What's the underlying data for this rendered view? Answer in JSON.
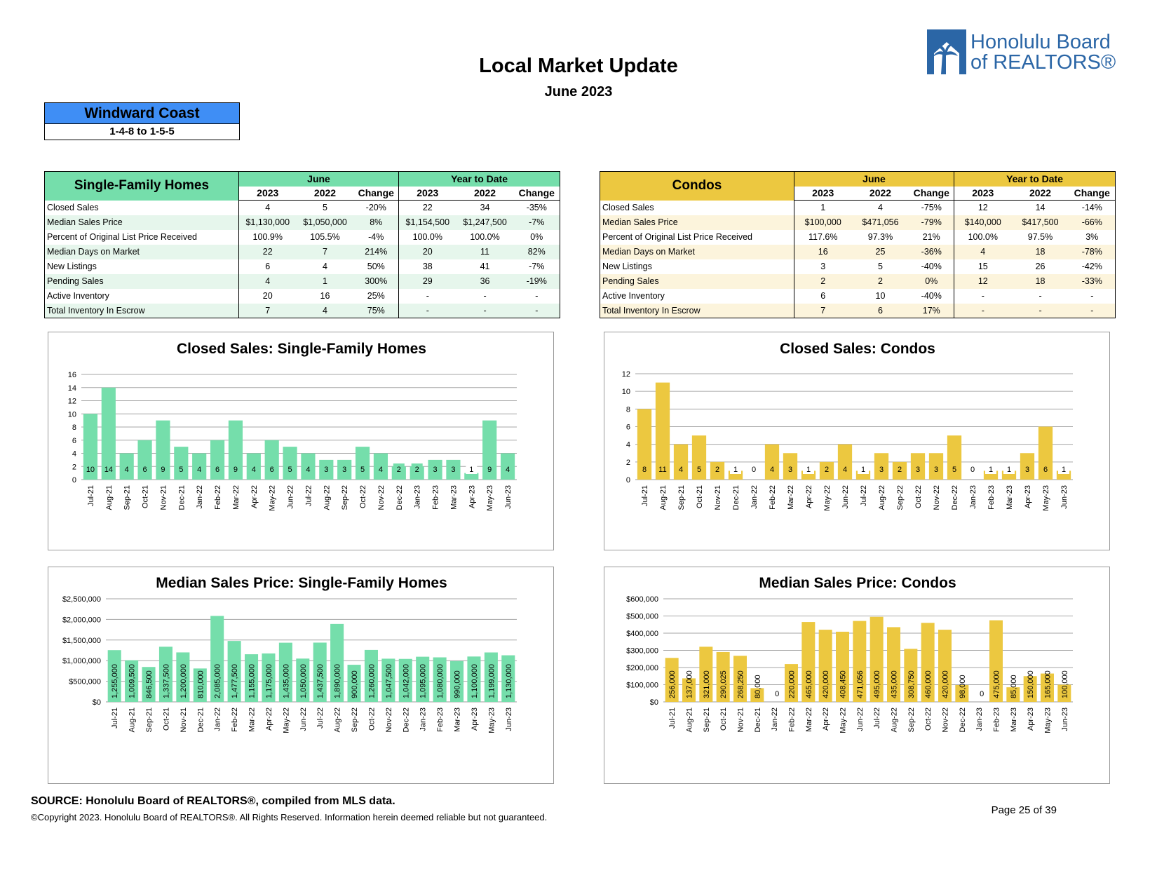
{
  "report": {
    "title": "Local Market Update",
    "period": "June 2023",
    "organization": "Honolulu Board of REALTORS®",
    "logo_line1": "Honolulu Board",
    "logo_line2": "of REALTORS®",
    "region_name": "Windward Coast",
    "region_code": "1-4-8 to 1-5-5"
  },
  "colors": {
    "sfh": "#75deab",
    "condo": "#ecc840",
    "region": "#3f8ef5",
    "logo": "#2b66a6"
  },
  "tables": {
    "sfh": {
      "name": "Single-Family Homes",
      "group_june": "June",
      "group_ytd": "Year to Date",
      "col_headers": [
        "2023",
        "2022",
        "Change",
        "2023",
        "2022",
        "Change"
      ],
      "rows": [
        {
          "label": "Closed Sales",
          "values": [
            "4",
            "5",
            "-20%",
            "22",
            "34",
            "-35%"
          ]
        },
        {
          "label": "Median Sales Price",
          "values": [
            "$1,130,000",
            "$1,050,000",
            "8%",
            "$1,154,500",
            "$1,247,500",
            "-7%"
          ]
        },
        {
          "label": "Percent of Original List Price Received",
          "values": [
            "100.9%",
            "105.5%",
            "-4%",
            "100.0%",
            "100.0%",
            "0%"
          ]
        },
        {
          "label": "Median Days on Market",
          "values": [
            "22",
            "7",
            "214%",
            "20",
            "11",
            "82%"
          ]
        },
        {
          "label": "New Listings",
          "values": [
            "6",
            "4",
            "50%",
            "38",
            "41",
            "-7%"
          ]
        },
        {
          "label": "Pending Sales",
          "values": [
            "4",
            "1",
            "300%",
            "29",
            "36",
            "-19%"
          ]
        },
        {
          "label": "Active Inventory",
          "values": [
            "20",
            "16",
            "25%",
            "-",
            "-",
            "-"
          ]
        },
        {
          "label": "Total Inventory In Escrow",
          "values": [
            "7",
            "4",
            "75%",
            "-",
            "-",
            "-"
          ]
        }
      ]
    },
    "condo": {
      "name": "Condos",
      "group_june": "June",
      "group_ytd": "Year to Date",
      "col_headers": [
        "2023",
        "2022",
        "Change",
        "2023",
        "2022",
        "Change"
      ],
      "rows": [
        {
          "label": "Closed Sales",
          "values": [
            "1",
            "4",
            "-75%",
            "12",
            "14",
            "-14%"
          ]
        },
        {
          "label": "Median Sales Price",
          "values": [
            "$100,000",
            "$471,056",
            "-79%",
            "$140,000",
            "$417,500",
            "-66%"
          ]
        },
        {
          "label": "Percent of Original List Price Received",
          "values": [
            "117.6%",
            "97.3%",
            "21%",
            "100.0%",
            "97.5%",
            "3%"
          ]
        },
        {
          "label": "Median Days on Market",
          "values": [
            "16",
            "25",
            "-36%",
            "4",
            "18",
            "-78%"
          ]
        },
        {
          "label": "New Listings",
          "values": [
            "3",
            "5",
            "-40%",
            "15",
            "26",
            "-42%"
          ]
        },
        {
          "label": "Pending Sales",
          "values": [
            "2",
            "2",
            "0%",
            "12",
            "18",
            "-33%"
          ]
        },
        {
          "label": "Active Inventory",
          "values": [
            "6",
            "10",
            "-40%",
            "-",
            "-",
            "-"
          ]
        },
        {
          "label": "Total Inventory In Escrow",
          "values": [
            "7",
            "6",
            "17%",
            "-",
            "-",
            "-"
          ]
        }
      ]
    }
  },
  "chart_data": [
    {
      "id": "sfh-closed",
      "type": "bar",
      "title": "Closed Sales: Single-Family Homes",
      "categories": [
        "Jul-21",
        "Aug-21",
        "Sep-21",
        "Oct-21",
        "Nov-21",
        "Dec-21",
        "Jan-22",
        "Feb-22",
        "Mar-22",
        "Apr-22",
        "May-22",
        "Jun-22",
        "Jul-22",
        "Aug-22",
        "Sep-22",
        "Oct-22",
        "Nov-22",
        "Dec-22",
        "Jan-23",
        "Feb-23",
        "Mar-23",
        "Apr-23",
        "May-23",
        "Jun-23"
      ],
      "values": [
        10,
        14,
        4,
        6,
        9,
        5,
        4,
        6,
        9,
        4,
        6,
        5,
        4,
        3,
        3,
        5,
        4,
        2,
        2,
        3,
        3,
        1,
        9,
        4
      ],
      "data_labels": [
        "10",
        "14",
        "4",
        "6",
        "9",
        "5",
        "4",
        "6",
        "9",
        "4",
        "6",
        "5",
        "4",
        "3",
        "3",
        "5",
        "4",
        "2",
        "2",
        "3",
        "3",
        "1",
        "9",
        "4"
      ],
      "ylim": [
        0,
        16
      ],
      "yticks": [
        0,
        2,
        4,
        6,
        8,
        10,
        12,
        14,
        16
      ],
      "ytick_labels": [
        "0",
        "2",
        "4",
        "6",
        "8",
        "10",
        "12",
        "14",
        "16"
      ],
      "label_position": "bottom",
      "color": "#75deab",
      "grid": true
    },
    {
      "id": "condo-closed",
      "type": "bar",
      "title": "Closed Sales: Condos",
      "categories": [
        "Jul-21",
        "Aug-21",
        "Sep-21",
        "Oct-21",
        "Nov-21",
        "Dec-21",
        "Jan-22",
        "Feb-22",
        "Mar-22",
        "Apr-22",
        "May-22",
        "Jun-22",
        "Jul-22",
        "Aug-22",
        "Sep-22",
        "Oct-22",
        "Nov-22",
        "Dec-22",
        "Jan-23",
        "Feb-23",
        "Mar-23",
        "Apr-23",
        "May-23",
        "Jun-23"
      ],
      "values": [
        8,
        11,
        4,
        5,
        2,
        1,
        0,
        4,
        3,
        1,
        2,
        4,
        1,
        3,
        2,
        3,
        3,
        5,
        0,
        1,
        1,
        3,
        6,
        1
      ],
      "data_labels": [
        "8",
        "11",
        "4",
        "5",
        "2",
        "1",
        "0",
        "4",
        "3",
        "1",
        "2",
        "4",
        "1",
        "3",
        "2",
        "3",
        "3",
        "5",
        "0",
        "1",
        "1",
        "3",
        "6",
        "1"
      ],
      "ylim": [
        0,
        12
      ],
      "yticks": [
        0,
        2,
        4,
        6,
        8,
        10,
        12
      ],
      "ytick_labels": [
        "0",
        "2",
        "4",
        "6",
        "8",
        "10",
        "12"
      ],
      "label_position": "bottom",
      "color": "#ecc840",
      "grid": true
    },
    {
      "id": "sfh-price",
      "type": "bar",
      "title": "Median Sales Price: Single-Family Homes",
      "categories": [
        "Jul-21",
        "Aug-21",
        "Sep-21",
        "Oct-21",
        "Nov-21",
        "Dec-21",
        "Jan-22",
        "Feb-22",
        "Mar-22",
        "Apr-22",
        "May-22",
        "Jun-22",
        "Jul-22",
        "Aug-22",
        "Sep-22",
        "Oct-22",
        "Nov-22",
        "Dec-22",
        "Jan-23",
        "Feb-23",
        "Mar-23",
        "Apr-23",
        "May-23",
        "Jun-23"
      ],
      "values": [
        1255000,
        1009500,
        846500,
        1337500,
        1200000,
        810000,
        2085000,
        1477500,
        1155000,
        1175000,
        1435000,
        1050000,
        1437500,
        1890000,
        900000,
        1260000,
        1047500,
        1042000,
        1095000,
        1080000,
        990000,
        1100000,
        1199000,
        1130000
      ],
      "data_labels": [
        "1,255,000",
        "1,009,500",
        "846,500",
        "1,337,500",
        "1,200,000",
        "810,000",
        "2,085,000",
        "1,477,500",
        "1,155,000",
        "1,175,000",
        "1,435,000",
        "1,050,000",
        "1,437,500",
        "1,890,000",
        "900,000",
        "1,260,000",
        "1,047,500",
        "1,042,000",
        "1,095,000",
        "1,080,000",
        "990,000",
        "1,100,000",
        "1,199,000",
        "1,130,000"
      ],
      "ylim": [
        0,
        2500000
      ],
      "yticks": [
        0,
        500000,
        1000000,
        1500000,
        2000000,
        2500000
      ],
      "ytick_labels": [
        "$0",
        "$500,000",
        "$1,000,000",
        "$1,500,000",
        "$2,000,000",
        "$2,500,000"
      ],
      "label_position": "rotated",
      "color": "#75deab",
      "grid": true
    },
    {
      "id": "condo-price",
      "type": "bar",
      "title": "Median Sales Price: Condos",
      "categories": [
        "Jul-21",
        "Aug-21",
        "Sep-21",
        "Oct-21",
        "Nov-21",
        "Dec-21",
        "Jan-22",
        "Feb-22",
        "Mar-22",
        "Apr-22",
        "May-22",
        "Jun-22",
        "Jul-22",
        "Aug-22",
        "Sep-22",
        "Oct-22",
        "Nov-22",
        "Dec-22",
        "Jan-23",
        "Feb-23",
        "Mar-23",
        "Apr-23",
        "May-23",
        "Jun-23"
      ],
      "values": [
        256000,
        137000,
        321000,
        290025,
        268250,
        80000,
        0,
        220000,
        465000,
        420000,
        408450,
        471056,
        495000,
        435000,
        308750,
        460000,
        420000,
        98000,
        0,
        475000,
        85000,
        150000,
        165000,
        100000
      ],
      "data_labels": [
        "256,000",
        "137,000",
        "321,000",
        "290,025",
        "268,250",
        "80,000",
        "0",
        "220,000",
        "465,000",
        "420,000",
        "408,450",
        "471,056",
        "495,000",
        "435,000",
        "308,750",
        "460,000",
        "420,000",
        "98,000",
        "0",
        "475,000",
        "85,000",
        "150,000",
        "165,000",
        "100,000"
      ],
      "ylim": [
        0,
        600000
      ],
      "yticks": [
        0,
        100000,
        200000,
        300000,
        400000,
        500000,
        600000
      ],
      "ytick_labels": [
        "$0",
        "$100,000",
        "$200,000",
        "$300,000",
        "$400,000",
        "$500,000",
        "$600,000"
      ],
      "label_position": "rotated",
      "color": "#ecc840",
      "grid": true
    }
  ],
  "footer": {
    "source": "SOURCE: Honolulu Board of REALTORS®, compiled from MLS data.",
    "copyright": "©Copyright 2023. Honolulu Board of REALTORS®. All Rights Reserved. Information herein deemed reliable but not guaranteed.",
    "page": "Page 25 of 39"
  }
}
